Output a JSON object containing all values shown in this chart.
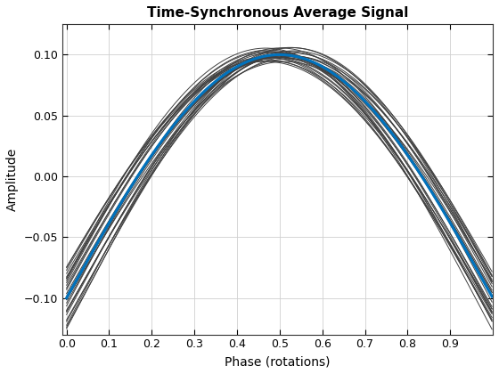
{
  "title": "Time-Synchronous Average Signal",
  "xlabel": "Phase (rotations)",
  "ylabel": "Amplitude",
  "xlim": [
    -0.01,
    1.0
  ],
  "ylim": [
    -0.13,
    0.125
  ],
  "xticks": [
    0,
    0.1,
    0.2,
    0.3,
    0.4,
    0.5,
    0.6,
    0.7,
    0.8,
    0.9
  ],
  "yticks": [
    -0.1,
    -0.05,
    0,
    0.05,
    0.1
  ],
  "n_points": 512,
  "n_noisy_lines": 28,
  "signal_color": "#0072BD",
  "signal_linewidth": 2.2,
  "noisy_color": "#404040",
  "noisy_linewidth": 0.7,
  "noisy_alpha": 1.0,
  "base_amplitude": 0.1,
  "phase_noise_scale": 0.035,
  "amp_noise_scale": 0.006,
  "seed": 12
}
